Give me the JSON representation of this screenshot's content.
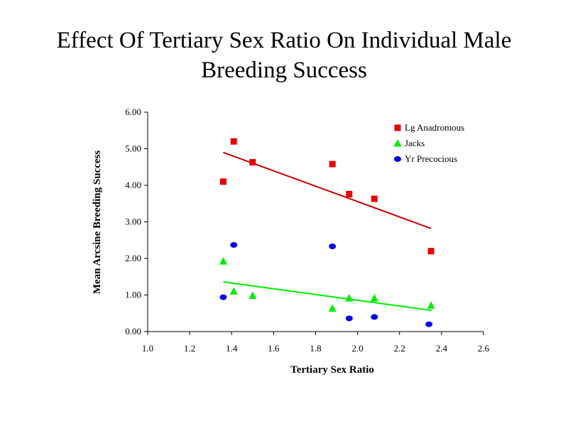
{
  "chart_data": {
    "type": "scatter",
    "title_lines": [
      "Effect Of Tertiary Sex Ratio On Individual Male",
      "Breeding Success"
    ],
    "xlabel": "Tertiary Sex Ratio",
    "ylabel": "Mean Arcsine Breeding Success",
    "xlim": [
      1.0,
      2.6
    ],
    "ylim": [
      0.0,
      6.0
    ],
    "xticks": [
      1.0,
      1.2,
      1.4,
      1.6,
      1.8,
      2.0,
      2.2,
      2.4,
      2.6
    ],
    "yticks": [
      0.0,
      1.0,
      2.0,
      3.0,
      4.0,
      5.0,
      6.0
    ],
    "xtick_labels": [
      "1.0",
      "1.2",
      "1.4",
      "1.6",
      "1.8",
      "2.0",
      "2.2",
      "2.4",
      "2.6"
    ],
    "ytick_labels": [
      "0.00",
      "1.00",
      "2.00",
      "3.00",
      "4.00",
      "5.00",
      "6.00"
    ],
    "grid": false,
    "legend_position": "top-right",
    "series": [
      {
        "name": "Lg Anadromous",
        "marker": "square",
        "color": "#e60000",
        "x": [
          1.36,
          1.41,
          1.5,
          1.88,
          1.96,
          2.08,
          2.35
        ],
        "y": [
          4.1,
          5.2,
          4.63,
          4.58,
          3.76,
          3.63,
          2.2
        ],
        "trendline": {
          "x": [
            1.36,
            2.35
          ],
          "y": [
            4.9,
            2.82
          ]
        }
      },
      {
        "name": "Jacks",
        "marker": "triangle",
        "color": "#00ee00",
        "x": [
          1.36,
          1.41,
          1.5,
          1.88,
          1.96,
          2.08,
          2.35
        ],
        "y": [
          1.92,
          1.1,
          0.98,
          0.63,
          0.91,
          0.91,
          0.71
        ],
        "trendline": {
          "x": [
            1.36,
            2.35
          ],
          "y": [
            1.36,
            0.58
          ]
        }
      },
      {
        "name": "Yr Precocious",
        "marker": "circle",
        "color": "#0000e6",
        "x": [
          1.36,
          1.41,
          1.88,
          1.96,
          2.08,
          2.34
        ],
        "y": [
          0.94,
          2.37,
          2.33,
          0.36,
          0.4,
          0.2
        ]
      }
    ]
  }
}
